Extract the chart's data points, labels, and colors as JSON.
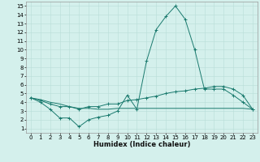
{
  "title": "",
  "xlabel": "Humidex (Indice chaleur)",
  "line_color": "#1a7a6e",
  "bg_color": "#d4f0ec",
  "grid_color": "#b8ddd8",
  "xlim": [
    -0.5,
    23.5
  ],
  "ylim": [
    0.5,
    15.5
  ],
  "xticks": [
    0,
    1,
    2,
    3,
    4,
    5,
    6,
    7,
    8,
    9,
    10,
    11,
    12,
    13,
    14,
    15,
    16,
    17,
    18,
    19,
    20,
    21,
    22,
    23
  ],
  "yticks": [
    1,
    2,
    3,
    4,
    5,
    6,
    7,
    8,
    9,
    10,
    11,
    12,
    13,
    14,
    15
  ],
  "line1_x": [
    0,
    1,
    2,
    3,
    4,
    5,
    6,
    7,
    8,
    9,
    10,
    11,
    12,
    13,
    14,
    15,
    16,
    17,
    18,
    19,
    20,
    21,
    22,
    23
  ],
  "line1_y": [
    4.5,
    4.0,
    3.2,
    2.2,
    2.2,
    1.2,
    2.0,
    2.3,
    2.5,
    3.0,
    4.8,
    3.2,
    8.7,
    12.3,
    13.8,
    15.0,
    13.5,
    10.0,
    5.5,
    5.5,
    5.5,
    4.8,
    4.0,
    3.2
  ],
  "line2_x": [
    0,
    1,
    2,
    3,
    4,
    5,
    6,
    7,
    8,
    9,
    10,
    11,
    12,
    13,
    14,
    15,
    16,
    17,
    18,
    19,
    20,
    21,
    22,
    23
  ],
  "line2_y": [
    4.5,
    4.2,
    3.8,
    3.5,
    3.5,
    3.2,
    3.5,
    3.5,
    3.8,
    3.8,
    4.2,
    4.3,
    4.5,
    4.7,
    5.0,
    5.2,
    5.3,
    5.5,
    5.6,
    5.8,
    5.8,
    5.5,
    4.8,
    3.2
  ],
  "line3_x": [
    0,
    1,
    2,
    3,
    4,
    5,
    6,
    7,
    8,
    9,
    10,
    11,
    12,
    13,
    14,
    15,
    16,
    17,
    18,
    19,
    20,
    21,
    22,
    23
  ],
  "line3_y": [
    4.5,
    4.3,
    4.0,
    3.8,
    3.5,
    3.3,
    3.3,
    3.2,
    3.2,
    3.3,
    3.3,
    3.3,
    3.3,
    3.3,
    3.3,
    3.3,
    3.3,
    3.3,
    3.3,
    3.3,
    3.3,
    3.3,
    3.3,
    3.2
  ],
  "tick_fontsize": 5,
  "xlabel_fontsize": 6
}
